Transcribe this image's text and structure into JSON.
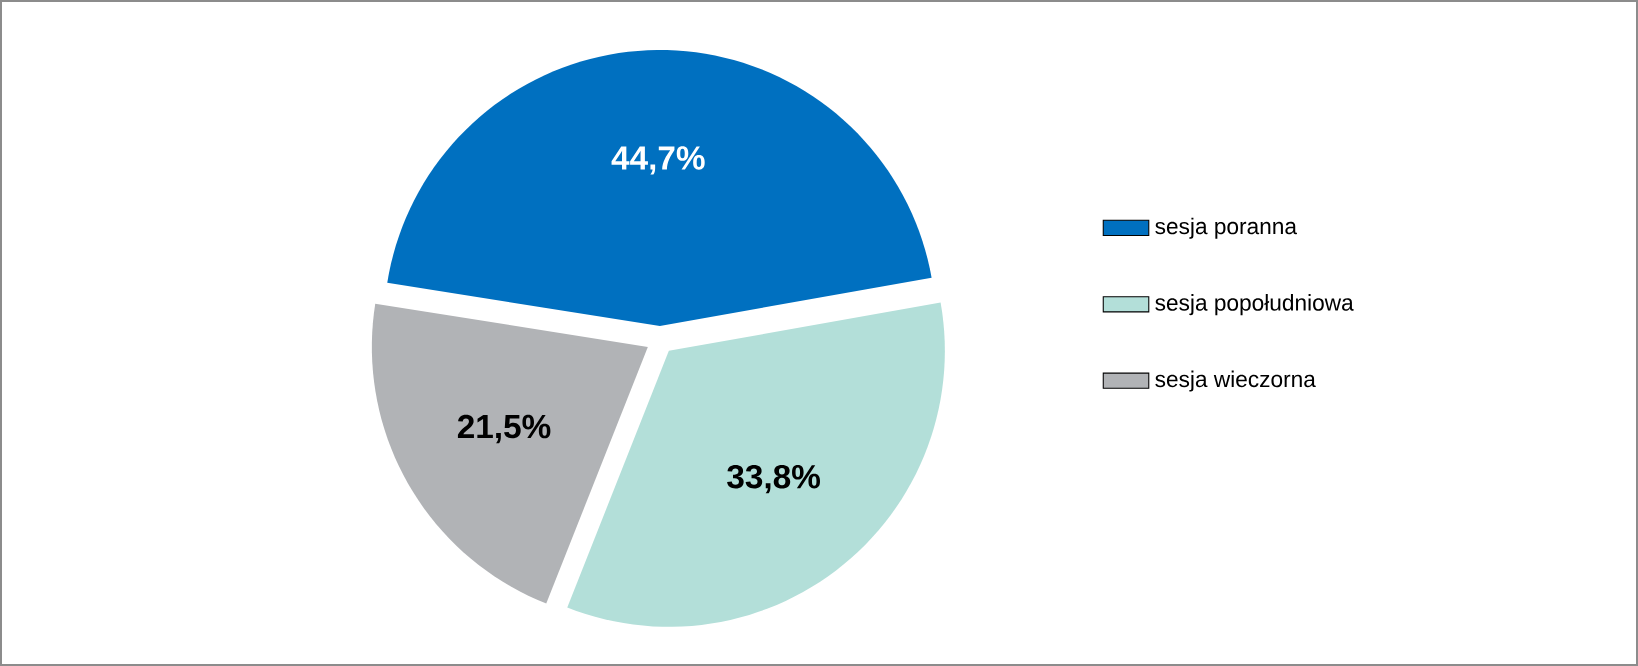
{
  "chart_data": {
    "type": "pie",
    "categories": [
      "sesja poranna",
      "sesja popołudniowa",
      "sesja wieczorna"
    ],
    "values": [
      44.7,
      33.8,
      21.5
    ],
    "value_labels": [
      "44,7%",
      "33,8%",
      "21,5%"
    ],
    "colors": [
      "#0070c0",
      "#b3dfd9",
      "#b1b3b6"
    ],
    "legend": "right"
  }
}
